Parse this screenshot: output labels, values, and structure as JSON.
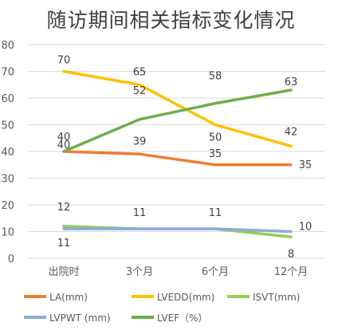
{
  "chart_data": {
    "type": "line",
    "title": "随访期间相关指标变化情况",
    "categories": [
      "出院时",
      "3个月",
      "6个月",
      "12个月"
    ],
    "ylim": [
      0,
      80
    ],
    "yticks": [
      0,
      10,
      20,
      30,
      40,
      50,
      60,
      70,
      80
    ],
    "grid": true,
    "legend_position": "bottom",
    "series": [
      {
        "name": "LA(mm)",
        "values": [
          40,
          39,
          35,
          35
        ],
        "color": "#ED7D31"
      },
      {
        "name": "LVEDD(mm)",
        "values": [
          70,
          65,
          50,
          42
        ],
        "color": "#FFC000"
      },
      {
        "name": "ISVT(mm)",
        "values": [
          12,
          11,
          11,
          8
        ],
        "color": "#92D050"
      },
      {
        "name": "LVPWT (mm)",
        "values": [
          11,
          11,
          11,
          10
        ],
        "color": "#8FAADC"
      },
      {
        "name": "LVEF（%）",
        "values": [
          40,
          52,
          58,
          63
        ],
        "color": "#70AD47"
      }
    ]
  }
}
